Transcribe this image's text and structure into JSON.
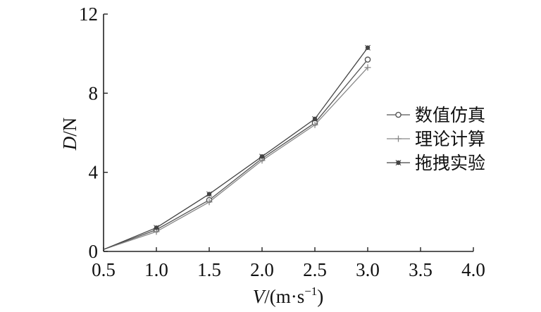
{
  "chart_data": {
    "type": "line",
    "title": "",
    "xlabel": {
      "var": "V",
      "unit_open": "/(m·s",
      "unit_exp": "−1",
      "unit_close": ")"
    },
    "ylabel": {
      "var": "D",
      "unit": "/N"
    },
    "xlim": [
      0.5,
      4.0
    ],
    "ylim": [
      0,
      12
    ],
    "xticks": [
      "0.5",
      "1.0",
      "1.5",
      "2.0",
      "2.5",
      "3.0",
      "3.5",
      "4.0"
    ],
    "yticks": [
      "0",
      "4",
      "8",
      "12"
    ],
    "grid": false,
    "legend_position": "right",
    "x": [
      0.5,
      1.0,
      1.5,
      2.0,
      2.5,
      3.0
    ],
    "series": [
      {
        "name": "数值仿真",
        "marker": "open-circle",
        "color": "#555555",
        "values": [
          0.1,
          1.1,
          2.6,
          4.7,
          6.5,
          9.7
        ]
      },
      {
        "name": "理论计算",
        "marker": "plus",
        "color": "#888888",
        "values": [
          0.1,
          1.0,
          2.5,
          4.6,
          6.4,
          9.3
        ]
      },
      {
        "name": "拖拽实验",
        "marker": "filled-star",
        "color": "#444444",
        "values": [
          0.1,
          1.2,
          2.9,
          4.8,
          6.7,
          10.3
        ]
      }
    ]
  }
}
